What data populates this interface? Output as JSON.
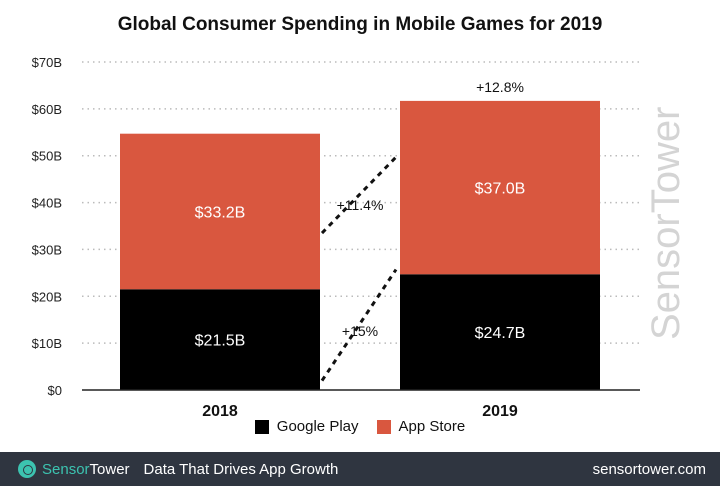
{
  "chart_data": {
    "type": "bar",
    "stacked": true,
    "title": "Global Consumer Spending in Mobile Games for 2019",
    "categories": [
      "2018",
      "2019"
    ],
    "series": [
      {
        "name": "Google Play",
        "values": [
          21.5,
          24.7
        ],
        "labels": [
          "$21.5B",
          "$24.7B"
        ],
        "color": "#000000"
      },
      {
        "name": "App Store",
        "values": [
          33.2,
          37.0
        ],
        "labels": [
          "$33.2B",
          "$37.0B"
        ],
        "color": "#d9573f"
      }
    ],
    "ylim": [
      0,
      70
    ],
    "yticks": [
      0,
      10,
      20,
      30,
      40,
      50,
      60,
      70
    ],
    "ytick_labels": [
      "$0",
      "$10B",
      "$20B",
      "$30B",
      "$40B",
      "$50B",
      "$60B",
      "$70B"
    ],
    "grid": true,
    "legend_placement": "bottom",
    "annotations": {
      "google_play_growth": "+15%",
      "app_store_growth": "+11.4%",
      "total_growth": "+12.8%"
    }
  },
  "watermark": "SensorTower",
  "footer": {
    "brand_part1": "Sensor",
    "brand_part2": "Tower",
    "tagline": "Data That Drives App Growth",
    "site": "sensortower.com"
  }
}
